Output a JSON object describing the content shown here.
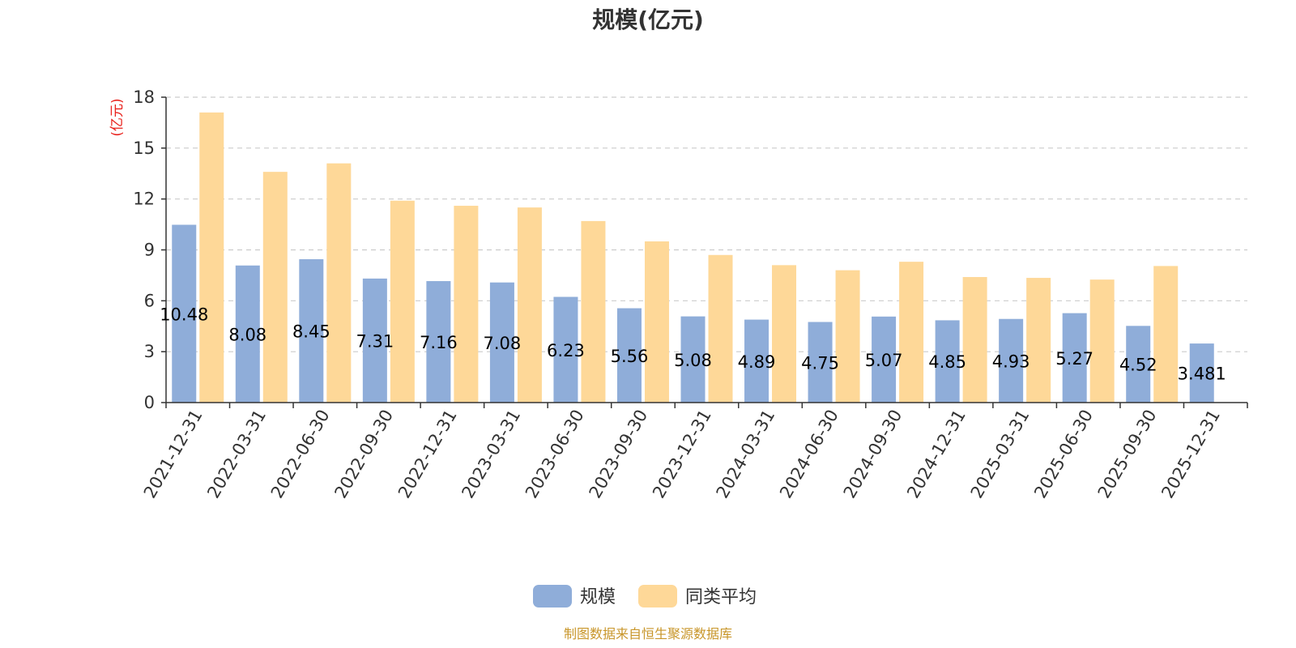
{
  "chart_data": {
    "type": "bar",
    "title": "规模(亿元)",
    "ylabel": "(亿元)",
    "ylim": [
      0,
      18
    ],
    "yticks": [
      0,
      3,
      6,
      9,
      12,
      15,
      18
    ],
    "grid": true,
    "legend_position": "bottom",
    "categories": [
      "2021-12-31",
      "2022-03-31",
      "2022-06-30",
      "2022-09-30",
      "2022-12-31",
      "2023-03-31",
      "2023-06-30",
      "2023-09-30",
      "2023-12-31",
      "2024-03-31",
      "2024-06-30",
      "2024-09-30",
      "2024-12-31",
      "2025-03-31",
      "2025-06-30",
      "2025-09-30",
      "2025-12-31"
    ],
    "series": [
      {
        "name": "规模",
        "color": "#8fadd9",
        "values": [
          10.48,
          8.08,
          8.45,
          7.31,
          7.16,
          7.08,
          6.23,
          5.56,
          5.08,
          4.89,
          4.75,
          5.07,
          4.85,
          4.93,
          5.27,
          4.52,
          3.481
        ],
        "labels": [
          "10.48",
          "8.08",
          "8.45",
          "7.31",
          "7.16",
          "7.08",
          "6.23",
          "5.56",
          "5.08",
          "4.89",
          "4.75",
          "5.07",
          "4.85",
          "4.93",
          "5.27",
          "4.52",
          "3.481"
        ]
      },
      {
        "name": "同类平均",
        "color": "#fed898",
        "values": [
          17.1,
          13.6,
          14.1,
          11.9,
          11.6,
          11.5,
          10.7,
          9.5,
          8.7,
          8.1,
          7.8,
          8.3,
          7.4,
          7.35,
          7.25,
          8.05,
          null
        ]
      }
    ],
    "source": "制图数据来自恒生聚源数据库"
  }
}
